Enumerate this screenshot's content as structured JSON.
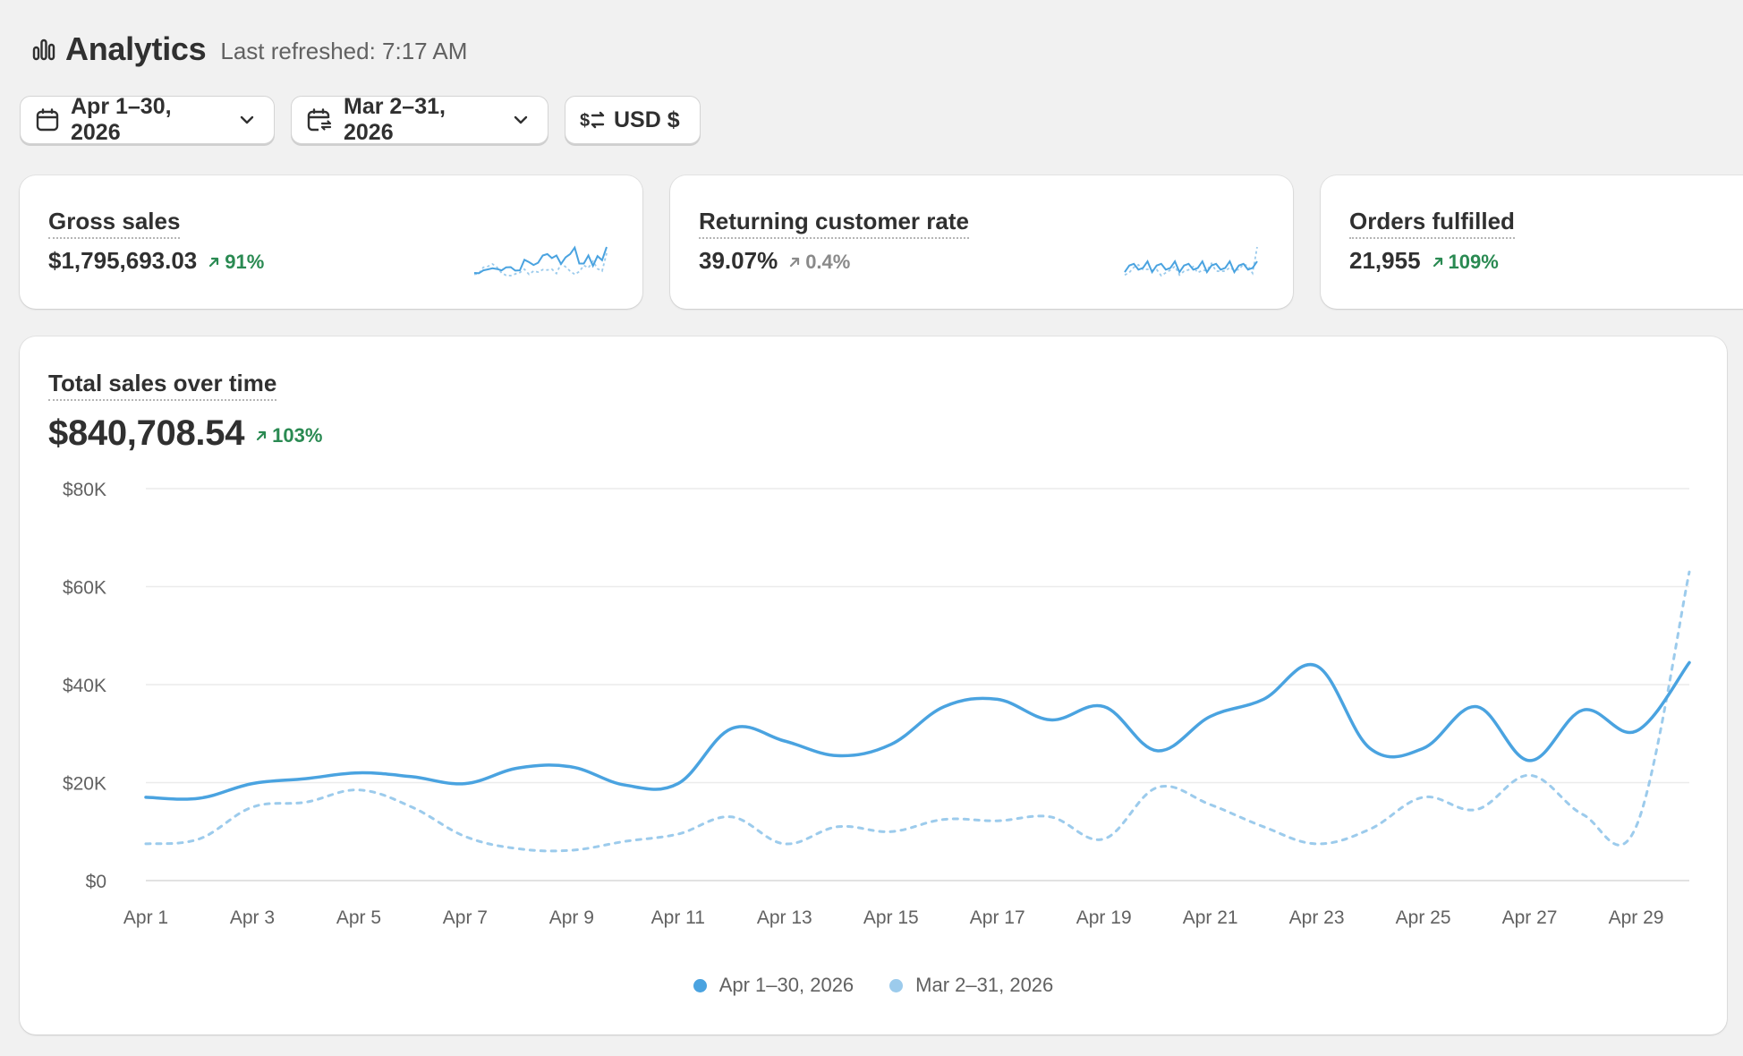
{
  "header": {
    "title": "Analytics",
    "refreshed": "Last refreshed: 7:17 AM",
    "icon": "bar-chart-icon"
  },
  "toolbar": {
    "date_range": "Apr 1–30, 2026",
    "compare_range": "Mar 2–31, 2026",
    "currency": "USD $"
  },
  "colors": {
    "primary_series": "#4aa3e0",
    "comparison_series": "#9ccbec",
    "positive": "#2a8a52",
    "neutral": "#8a8a8a"
  },
  "metrics": [
    {
      "title": "Gross sales",
      "value": "$1,795,693.03",
      "delta": "91%",
      "trend": "up"
    },
    {
      "title": "Returning customer rate",
      "value": "39.07%",
      "delta": "0.4%",
      "trend": "neutral"
    },
    {
      "title": "Orders fulfilled",
      "value": "21,955",
      "delta": "109%",
      "trend": "up"
    }
  ],
  "main": {
    "title": "Total sales over time",
    "value": "$840,708.54",
    "delta": "103%"
  },
  "chart_data": {
    "type": "line",
    "title": "Total sales over time",
    "x": [
      "Apr 1",
      "Apr 2",
      "Apr 3",
      "Apr 4",
      "Apr 5",
      "Apr 6",
      "Apr 7",
      "Apr 8",
      "Apr 9",
      "Apr 10",
      "Apr 11",
      "Apr 12",
      "Apr 13",
      "Apr 14",
      "Apr 15",
      "Apr 16",
      "Apr 17",
      "Apr 18",
      "Apr 19",
      "Apr 20",
      "Apr 21",
      "Apr 22",
      "Apr 23",
      "Apr 24",
      "Apr 25",
      "Apr 26",
      "Apr 27",
      "Apr 28",
      "Apr 29",
      "Apr 30"
    ],
    "x_tick_labels": [
      "Apr 1",
      "Apr 3",
      "Apr 5",
      "Apr 7",
      "Apr 9",
      "Apr 11",
      "Apr 13",
      "Apr 15",
      "Apr 17",
      "Apr 19",
      "Apr 21",
      "Apr 23",
      "Apr 25",
      "Apr 27",
      "Apr 29"
    ],
    "y_tick_labels": [
      "$0",
      "$20K",
      "$40K",
      "$60K",
      "$80K"
    ],
    "ylim": [
      0,
      80000
    ],
    "grid": true,
    "legend_position": "bottom-center",
    "series": [
      {
        "name": "Apr 1–30, 2026",
        "style": "solid",
        "values": [
          17000,
          16800,
          19800,
          20800,
          22000,
          21200,
          19800,
          23000,
          23200,
          19500,
          19800,
          31000,
          28500,
          25500,
          27800,
          35500,
          37000,
          32800,
          35500,
          26500,
          33500,
          37000,
          43800,
          27000,
          27000,
          35500,
          24500,
          34800,
          30500,
          44500
        ]
      },
      {
        "name": "Mar 2–31, 2026",
        "style": "dashed",
        "values": [
          7500,
          8500,
          15000,
          16000,
          18500,
          15000,
          9000,
          6500,
          6200,
          8000,
          9500,
          13000,
          7500,
          11000,
          10000,
          12500,
          12200,
          13000,
          8500,
          19000,
          15500,
          11000,
          7500,
          10500,
          17000,
          14500,
          21500,
          13500,
          11000,
          63000
        ]
      }
    ]
  }
}
